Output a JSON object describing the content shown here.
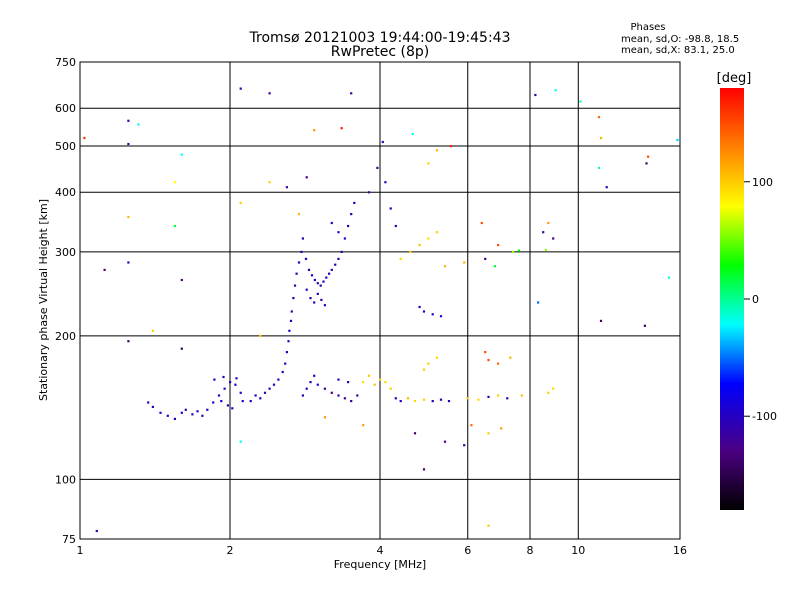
{
  "chart_data": {
    "type": "scatter",
    "title": "Tromsø 20121003 19:44:00-19:45:43",
    "subtitle": "RwPretec (8p)",
    "xlabel": "Frequency [MHz]",
    "ylabel": "Stationary phase Virtual Height [km]",
    "x_scale": "log",
    "y_scale": "log",
    "xlim": [
      1,
      16
    ],
    "ylim": [
      75,
      750
    ],
    "x_ticks": [
      1,
      2,
      4,
      6,
      8,
      10,
      16
    ],
    "x_tick_labels": [
      "1",
      "2",
      "4",
      "6",
      "8",
      "10",
      "16"
    ],
    "y_ticks": [
      75,
      100,
      200,
      300,
      400,
      500,
      600,
      750
    ],
    "y_tick_labels": [
      "75",
      "100",
      "200",
      "300",
      "400",
      "500",
      "600",
      "750"
    ],
    "grid": true,
    "phases_info": {
      "title": "Phases",
      "line_o": "mean, sd,O: -98.8, 18.5",
      "line_x": "mean, sd,X: 83.1, 25.0"
    },
    "colorbar": {
      "label": "[deg]",
      "min": -180,
      "max": 180,
      "ticks": [
        100,
        0,
        -100
      ],
      "tick_labels": [
        "100",
        "0",
        "-100"
      ],
      "colors": [
        "#ff0000",
        "#ff8000",
        "#ffff00",
        "#00ff00",
        "#00ffff",
        "#0000ff",
        "#4b0082",
        "#000000"
      ]
    },
    "points": [
      {
        "x": 1.37,
        "y": 145,
        "c": -100
      },
      {
        "x": 1.4,
        "y": 142,
        "c": -105
      },
      {
        "x": 1.45,
        "y": 138,
        "c": -98
      },
      {
        "x": 1.5,
        "y": 136,
        "c": -102
      },
      {
        "x": 1.55,
        "y": 134,
        "c": -100
      },
      {
        "x": 1.6,
        "y": 138,
        "c": -95
      },
      {
        "x": 1.63,
        "y": 140,
        "c": -108
      },
      {
        "x": 1.68,
        "y": 137,
        "c": -100
      },
      {
        "x": 1.72,
        "y": 139,
        "c": -97
      },
      {
        "x": 1.76,
        "y": 136,
        "c": -110
      },
      {
        "x": 1.8,
        "y": 140,
        "c": -100
      },
      {
        "x": 1.85,
        "y": 145,
        "c": -102
      },
      {
        "x": 1.9,
        "y": 150,
        "c": -99
      },
      {
        "x": 1.95,
        "y": 155,
        "c": -105
      },
      {
        "x": 2.0,
        "y": 160,
        "c": -100
      },
      {
        "x": 2.05,
        "y": 158,
        "c": -95
      },
      {
        "x": 2.1,
        "y": 152,
        "c": -100
      },
      {
        "x": 1.92,
        "y": 146,
        "c": -100
      },
      {
        "x": 1.98,
        "y": 143,
        "c": -103
      },
      {
        "x": 2.02,
        "y": 141,
        "c": -98
      },
      {
        "x": 2.12,
        "y": 146,
        "c": -100
      },
      {
        "x": 1.86,
        "y": 162,
        "c": -100
      },
      {
        "x": 1.94,
        "y": 164,
        "c": -110
      },
      {
        "x": 2.06,
        "y": 163,
        "c": -100
      },
      {
        "x": 2.2,
        "y": 146,
        "c": -100
      },
      {
        "x": 2.25,
        "y": 150,
        "c": -98
      },
      {
        "x": 2.3,
        "y": 148,
        "c": -102
      },
      {
        "x": 2.35,
        "y": 152,
        "c": -100
      },
      {
        "x": 2.4,
        "y": 155,
        "c": -95
      },
      {
        "x": 2.45,
        "y": 158,
        "c": -105
      },
      {
        "x": 2.5,
        "y": 162,
        "c": -100
      },
      {
        "x": 2.55,
        "y": 168,
        "c": -100
      },
      {
        "x": 2.58,
        "y": 175,
        "c": -100
      },
      {
        "x": 2.6,
        "y": 185,
        "c": -100
      },
      {
        "x": 2.62,
        "y": 195,
        "c": -102
      },
      {
        "x": 2.63,
        "y": 205,
        "c": -98
      },
      {
        "x": 2.65,
        "y": 215,
        "c": -100
      },
      {
        "x": 2.66,
        "y": 225,
        "c": -100
      },
      {
        "x": 2.68,
        "y": 240,
        "c": -100
      },
      {
        "x": 2.7,
        "y": 255,
        "c": -105
      },
      {
        "x": 2.72,
        "y": 270,
        "c": -100
      },
      {
        "x": 2.75,
        "y": 285,
        "c": -100
      },
      {
        "x": 2.78,
        "y": 300,
        "c": -100
      },
      {
        "x": 2.8,
        "y": 320,
        "c": -98
      },
      {
        "x": 2.84,
        "y": 290,
        "c": -102
      },
      {
        "x": 2.88,
        "y": 275,
        "c": -100
      },
      {
        "x": 2.92,
        "y": 268,
        "c": -100
      },
      {
        "x": 2.96,
        "y": 262,
        "c": -100
      },
      {
        "x": 3.0,
        "y": 258,
        "c": -105
      },
      {
        "x": 3.04,
        "y": 255,
        "c": -100
      },
      {
        "x": 3.08,
        "y": 260,
        "c": -100
      },
      {
        "x": 3.12,
        "y": 265,
        "c": -98
      },
      {
        "x": 3.16,
        "y": 270,
        "c": -100
      },
      {
        "x": 3.2,
        "y": 275,
        "c": -100
      },
      {
        "x": 3.25,
        "y": 282,
        "c": -102
      },
      {
        "x": 3.3,
        "y": 290,
        "c": -100
      },
      {
        "x": 3.35,
        "y": 300,
        "c": -100
      },
      {
        "x": 3.4,
        "y": 320,
        "c": -100
      },
      {
        "x": 3.45,
        "y": 340,
        "c": -100
      },
      {
        "x": 3.5,
        "y": 360,
        "c": -105
      },
      {
        "x": 3.55,
        "y": 380,
        "c": -100
      },
      {
        "x": 3.3,
        "y": 330,
        "c": -100
      },
      {
        "x": 3.2,
        "y": 345,
        "c": -100
      },
      {
        "x": 3.0,
        "y": 245,
        "c": -110
      },
      {
        "x": 3.05,
        "y": 238,
        "c": -115
      },
      {
        "x": 3.1,
        "y": 232,
        "c": -100
      },
      {
        "x": 2.85,
        "y": 250,
        "c": -100
      },
      {
        "x": 2.9,
        "y": 240,
        "c": -100
      },
      {
        "x": 2.95,
        "y": 235,
        "c": -98
      },
      {
        "x": 2.8,
        "y": 150,
        "c": -100
      },
      {
        "x": 2.85,
        "y": 155,
        "c": -100
      },
      {
        "x": 2.9,
        "y": 160,
        "c": -105
      },
      {
        "x": 2.95,
        "y": 165,
        "c": -100
      },
      {
        "x": 3.0,
        "y": 158,
        "c": -100
      },
      {
        "x": 3.1,
        "y": 155,
        "c": -120
      },
      {
        "x": 3.2,
        "y": 152,
        "c": -125
      },
      {
        "x": 3.3,
        "y": 150,
        "c": -118
      },
      {
        "x": 3.4,
        "y": 148,
        "c": -120
      },
      {
        "x": 3.5,
        "y": 146,
        "c": -115
      },
      {
        "x": 3.6,
        "y": 150,
        "c": -120
      },
      {
        "x": 3.3,
        "y": 162,
        "c": -100
      },
      {
        "x": 3.45,
        "y": 160,
        "c": -110
      },
      {
        "x": 3.7,
        "y": 160,
        "c": 95
      },
      {
        "x": 3.8,
        "y": 165,
        "c": 100
      },
      {
        "x": 3.9,
        "y": 158,
        "c": 105
      },
      {
        "x": 4.0,
        "y": 162,
        "c": 98
      },
      {
        "x": 4.1,
        "y": 160,
        "c": 95
      },
      {
        "x": 4.2,
        "y": 155,
        "c": 100
      },
      {
        "x": 4.3,
        "y": 148,
        "c": -100
      },
      {
        "x": 4.4,
        "y": 146,
        "c": -100
      },
      {
        "x": 4.55,
        "y": 148,
        "c": 110
      },
      {
        "x": 4.7,
        "y": 146,
        "c": 95
      },
      {
        "x": 4.9,
        "y": 147,
        "c": 100
      },
      {
        "x": 5.1,
        "y": 146,
        "c": -100
      },
      {
        "x": 5.3,
        "y": 147,
        "c": -95
      },
      {
        "x": 5.5,
        "y": 146,
        "c": -100
      },
      {
        "x": 5.0,
        "y": 175,
        "c": 100
      },
      {
        "x": 5.2,
        "y": 180,
        "c": 95
      },
      {
        "x": 4.9,
        "y": 170,
        "c": 100
      },
      {
        "x": 6.0,
        "y": 148,
        "c": 100
      },
      {
        "x": 6.3,
        "y": 147,
        "c": 95
      },
      {
        "x": 6.6,
        "y": 149,
        "c": -100
      },
      {
        "x": 6.9,
        "y": 150,
        "c": 100
      },
      {
        "x": 7.2,
        "y": 148,
        "c": -100
      },
      {
        "x": 7.7,
        "y": 150,
        "c": 105
      },
      {
        "x": 8.7,
        "y": 152,
        "c": 100
      },
      {
        "x": 8.9,
        "y": 155,
        "c": 95
      },
      {
        "x": 4.8,
        "y": 230,
        "c": -100
      },
      {
        "x": 4.9,
        "y": 225,
        "c": -100
      },
      {
        "x": 5.1,
        "y": 222,
        "c": -100
      },
      {
        "x": 5.3,
        "y": 220,
        "c": -98
      },
      {
        "x": 4.4,
        "y": 290,
        "c": 95
      },
      {
        "x": 4.6,
        "y": 300,
        "c": 100
      },
      {
        "x": 4.8,
        "y": 310,
        "c": 105
      },
      {
        "x": 5.0,
        "y": 320,
        "c": 95
      },
      {
        "x": 5.2,
        "y": 330,
        "c": 100
      },
      {
        "x": 4.3,
        "y": 340,
        "c": -100
      },
      {
        "x": 4.2,
        "y": 370,
        "c": -100
      },
      {
        "x": 4.1,
        "y": 420,
        "c": -100
      },
      {
        "x": 3.95,
        "y": 450,
        "c": -110
      },
      {
        "x": 4.05,
        "y": 510,
        "c": -110
      },
      {
        "x": 3.8,
        "y": 400,
        "c": -120
      },
      {
        "x": 6.5,
        "y": 290,
        "c": -130
      },
      {
        "x": 6.8,
        "y": 280,
        "c": 20
      },
      {
        "x": 7.4,
        "y": 300,
        "c": 60
      },
      {
        "x": 8.5,
        "y": 330,
        "c": -120
      },
      {
        "x": 8.9,
        "y": 320,
        "c": -120
      },
      {
        "x": 8.7,
        "y": 345,
        "c": 120
      },
      {
        "x": 8.2,
        "y": 640,
        "c": -110
      },
      {
        "x": 9.0,
        "y": 655,
        "c": -20
      },
      {
        "x": 10.1,
        "y": 620,
        "c": -10
      },
      {
        "x": 11.0,
        "y": 575,
        "c": 140
      },
      {
        "x": 11.1,
        "y": 520,
        "c": 110
      },
      {
        "x": 11.0,
        "y": 450,
        "c": -10
      },
      {
        "x": 11.4,
        "y": 410,
        "c": -110
      },
      {
        "x": 13.8,
        "y": 475,
        "c": 150
      },
      {
        "x": 13.7,
        "y": 460,
        "c": -140
      },
      {
        "x": 15.2,
        "y": 265,
        "c": -10
      },
      {
        "x": 13.6,
        "y": 210,
        "c": -140
      },
      {
        "x": 11.1,
        "y": 215,
        "c": -140
      },
      {
        "x": 15.8,
        "y": 515,
        "c": -30
      },
      {
        "x": 1.25,
        "y": 565,
        "c": -110
      },
      {
        "x": 1.31,
        "y": 555,
        "c": -10
      },
      {
        "x": 1.25,
        "y": 505,
        "c": -120
      },
      {
        "x": 1.6,
        "y": 480,
        "c": -20
      },
      {
        "x": 1.55,
        "y": 420,
        "c": 80
      },
      {
        "x": 1.25,
        "y": 355,
        "c": 110
      },
      {
        "x": 1.55,
        "y": 340,
        "c": 20
      },
      {
        "x": 1.25,
        "y": 285,
        "c": -110
      },
      {
        "x": 1.12,
        "y": 275,
        "c": -130
      },
      {
        "x": 1.6,
        "y": 262,
        "c": -130
      },
      {
        "x": 1.4,
        "y": 205,
        "c": 100
      },
      {
        "x": 1.25,
        "y": 195,
        "c": -140
      },
      {
        "x": 1.6,
        "y": 188,
        "c": -150
      },
      {
        "x": 1.08,
        "y": 78,
        "c": -110
      },
      {
        "x": 1.02,
        "y": 520,
        "c": 160
      },
      {
        "x": 2.1,
        "y": 660,
        "c": -110
      },
      {
        "x": 2.4,
        "y": 645,
        "c": -120
      },
      {
        "x": 2.95,
        "y": 540,
        "c": 120
      },
      {
        "x": 3.35,
        "y": 545,
        "c": 170
      },
      {
        "x": 3.5,
        "y": 645,
        "c": -120
      },
      {
        "x": 4.65,
        "y": 530,
        "c": -20
      },
      {
        "x": 5.2,
        "y": 490,
        "c": 110
      },
      {
        "x": 5.55,
        "y": 500,
        "c": 170
      },
      {
        "x": 5.0,
        "y": 460,
        "c": 100
      },
      {
        "x": 2.1,
        "y": 380,
        "c": 100
      },
      {
        "x": 2.4,
        "y": 420,
        "c": 100
      },
      {
        "x": 2.6,
        "y": 410,
        "c": -120
      },
      {
        "x": 2.85,
        "y": 430,
        "c": -120
      },
      {
        "x": 2.75,
        "y": 360,
        "c": 110
      },
      {
        "x": 2.3,
        "y": 200,
        "c": 100
      },
      {
        "x": 2.1,
        "y": 120,
        "c": -20
      },
      {
        "x": 3.1,
        "y": 135,
        "c": 120
      },
      {
        "x": 3.7,
        "y": 130,
        "c": 120
      },
      {
        "x": 4.7,
        "y": 125,
        "c": -140
      },
      {
        "x": 4.9,
        "y": 105,
        "c": -140
      },
      {
        "x": 5.4,
        "y": 120,
        "c": -120
      },
      {
        "x": 5.9,
        "y": 118,
        "c": -110
      },
      {
        "x": 6.1,
        "y": 130,
        "c": 140
      },
      {
        "x": 6.6,
        "y": 125,
        "c": 100
      },
      {
        "x": 6.6,
        "y": 80,
        "c": 100
      },
      {
        "x": 7.0,
        "y": 128,
        "c": 120
      },
      {
        "x": 6.5,
        "y": 185,
        "c": 150
      },
      {
        "x": 6.6,
        "y": 178,
        "c": 150
      },
      {
        "x": 6.9,
        "y": 175,
        "c": 140
      },
      {
        "x": 7.3,
        "y": 180,
        "c": 110
      },
      {
        "x": 8.3,
        "y": 235,
        "c": -50
      },
      {
        "x": 5.4,
        "y": 280,
        "c": 110
      },
      {
        "x": 5.9,
        "y": 285,
        "c": 110
      },
      {
        "x": 6.4,
        "y": 345,
        "c": 150
      },
      {
        "x": 6.9,
        "y": 310,
        "c": 150
      },
      {
        "x": 7.6,
        "y": 302,
        "c": 30
      },
      {
        "x": 8.6,
        "y": 303,
        "c": 60
      }
    ]
  }
}
